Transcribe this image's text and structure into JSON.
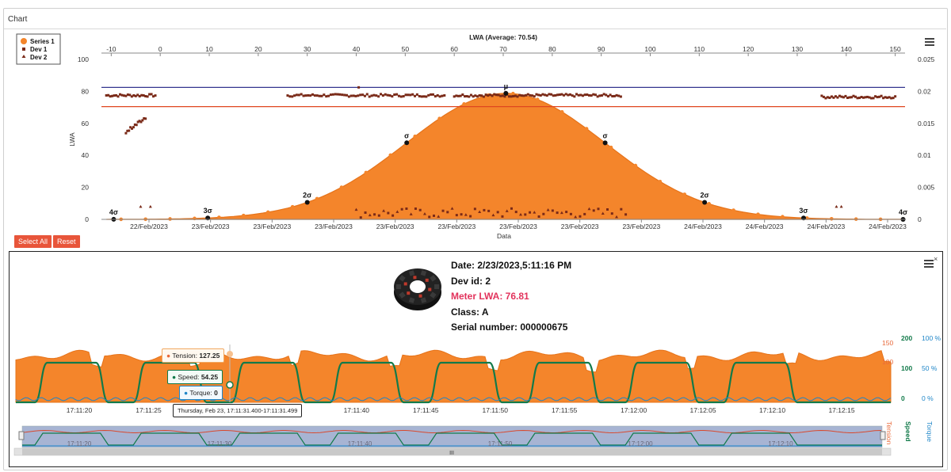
{
  "panel": {
    "title": "Chart"
  },
  "buttons": {
    "select_all": "Select All",
    "reset": "Reset"
  },
  "colors": {
    "series1": "#f4852b",
    "dev": "#7a2a18",
    "avg_line": "#33368f",
    "limit_line": "#e0461f",
    "speed": "#127a4a",
    "torque": "#1f86c8",
    "tension": "#e8693a"
  },
  "chart_data": [
    {
      "type": "area",
      "title": "LWA (Average: 70.54)",
      "xlabel": "Data",
      "ylabel": "LWA",
      "x_top_ticks": [
        -10,
        0,
        10,
        20,
        30,
        40,
        50,
        60,
        70,
        80,
        90,
        100,
        110,
        120,
        130,
        140,
        150
      ],
      "x_top_range": [
        -12,
        152
      ],
      "y_left_ticks": [
        0,
        20,
        40,
        60,
        80,
        100
      ],
      "y_left_range": [
        0,
        100
      ],
      "y_right_ticks": [
        "0",
        "0.005",
        "0.01",
        "0.015",
        "0.02",
        "0.025"
      ],
      "y_right_range": [
        0,
        0.025
      ],
      "x_bottom_ticks": [
        "22/Feb/2023",
        "23/Feb/2023",
        "23/Feb/2023",
        "23/Feb/2023",
        "23/Feb/2023",
        "23/Feb/2023",
        "23/Feb/2023",
        "23/Feb/2023",
        "23/Feb/2023",
        "24/Feb/2023",
        "24/Feb/2023",
        "24/Feb/2023",
        "24/Feb/2023"
      ],
      "legend": [
        "Series 1",
        "Dev 1",
        "Dev 2"
      ],
      "legend_position": "top-left",
      "reference_lines": {
        "upper": 82.5,
        "lower": 70.5
      },
      "distribution": {
        "mean": 70.54,
        "sigma": 20.27,
        "peak_density": 0.0197
      },
      "sigma_markers": [
        {
          "label": "4σ",
          "x": -9.5
        },
        {
          "label": "3σ",
          "x": 9.7
        },
        {
          "label": "2σ",
          "x": 30.0
        },
        {
          "label": "σ",
          "x": 50.3
        },
        {
          "label": "μ",
          "x": 70.54
        },
        {
          "label": "σ",
          "x": 90.8
        },
        {
          "label": "2σ",
          "x": 111.1
        },
        {
          "label": "3σ",
          "x": 131.3
        },
        {
          "label": "4σ",
          "x": 151.6
        }
      ],
      "dev_clusters": [
        {
          "x_from": -11,
          "x_to": -1,
          "y": 77.5,
          "count": 26
        },
        {
          "x_from": -7,
          "x_to": -3,
          "y": 59,
          "count": 14,
          "slope": 9
        },
        {
          "x_from": 26,
          "x_to": 58,
          "y": 77.5,
          "count": 70
        },
        {
          "x_from": 60,
          "x_to": 94,
          "y": 77.5,
          "count": 80
        },
        {
          "x_from": 135,
          "x_to": 150,
          "y": 76.5,
          "count": 38
        },
        {
          "x_from": 40,
          "x_to": 95,
          "y": 4,
          "count": 60
        }
      ],
      "dev_points": [
        {
          "x": 40.5,
          "y": 82.5
        },
        {
          "x": 70.5,
          "y": 79.5
        }
      ]
    },
    {
      "type": "line",
      "x_ticks": [
        "17:11:20",
        "17:11:25",
        "17:11:30",
        "17:11:35",
        "17:11:40",
        "17:11:45",
        "17:11:50",
        "17:11:55",
        "17:12:00",
        "17:12:05",
        "17:12:10",
        "17:12:15"
      ],
      "x_range_seconds": [
        16.5,
        18.5
      ],
      "y_tension_ticks": [
        "150",
        "100"
      ],
      "y_speed_ticks": [
        "200",
        "100",
        "0"
      ],
      "y_torque_ticks": [
        "100 %",
        "50 %",
        "0 %"
      ],
      "series": [
        {
          "name": "Tension",
          "level": 100
        },
        {
          "name": "Speed",
          "cycles": 8,
          "high": 100,
          "low": 0
        },
        {
          "name": "Torque",
          "level": 2
        }
      ],
      "cycle_start_seconds": 16.8,
      "cycle_length_seconds": 7.1,
      "cycle_high_seconds": 4.4,
      "navigator_x_ticks": [
        "17:11:20",
        "17:11:30",
        "17:11:40",
        "17:11:50",
        "17:12:00",
        "17:12:10"
      ]
    }
  ],
  "detail": {
    "date": "Date: 2/23/2023,5:11:16 PM",
    "dev_id": "Dev id: 2",
    "meter_lwa": "Meter LWA: 76.81",
    "class": "Class: A",
    "serial": "Serial number: 000000675"
  },
  "tooltip": {
    "tension_label": "Tension: ",
    "tension_value": "127.25",
    "speed_label": "Speed: ",
    "speed_value": "54.25",
    "torque_label": "Torque: ",
    "torque_value": "0",
    "date": "Thursday, Feb 23, 17:11:31.400-17:11:31.499"
  }
}
